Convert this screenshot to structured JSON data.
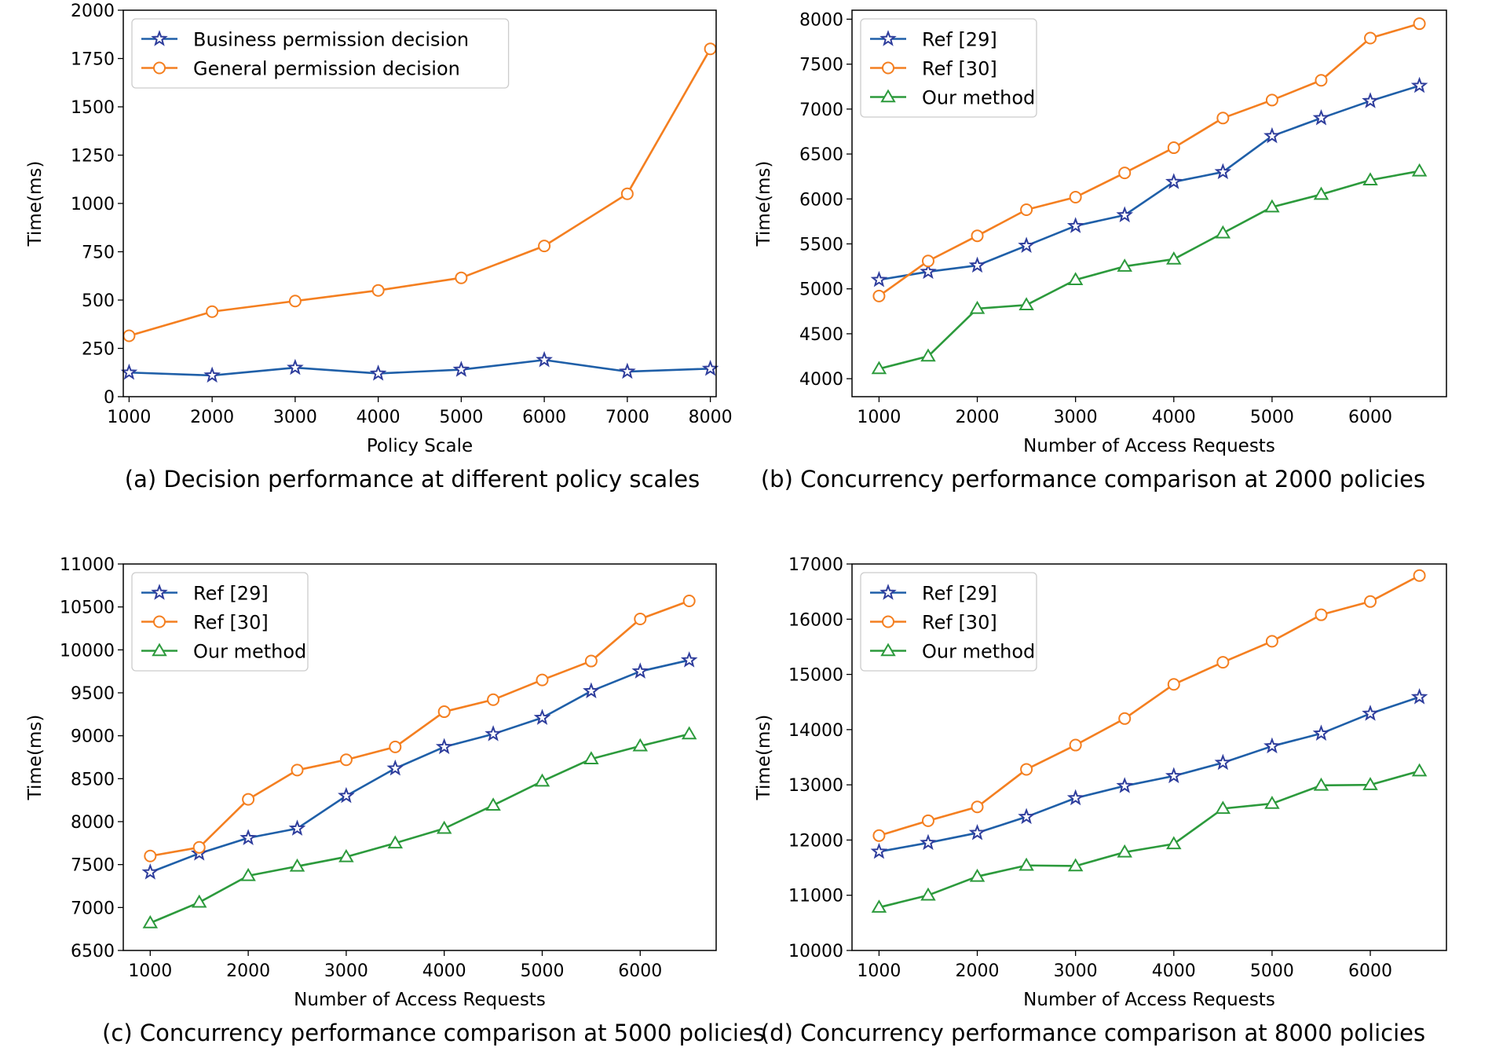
{
  "colors": {
    "blue": "#1f5fa8",
    "orange": "#f47f20",
    "green": "#2c9a3c",
    "star_edge": "#2e3d9c"
  },
  "chart_data": [
    {
      "id": "a",
      "type": "line",
      "caption": "(a) Decision performance at different policy scales",
      "xlabel": "Policy Scale",
      "ylabel": "Time(ms)",
      "xlim": [
        930,
        8070
      ],
      "ylim": [
        0,
        2000
      ],
      "xticks": [
        1000,
        2000,
        3000,
        4000,
        5000,
        6000,
        7000,
        8000
      ],
      "yticks": [
        0,
        250,
        500,
        750,
        1000,
        1250,
        1500,
        1750,
        2000
      ],
      "legend_loc": "top-left",
      "x": [
        1000,
        2000,
        3000,
        4000,
        5000,
        6000,
        7000,
        8000
      ],
      "series": [
        {
          "name": "Business permission decision",
          "color": "blue",
          "marker": "star",
          "values": [
            125,
            110,
            150,
            120,
            140,
            190,
            130,
            145
          ]
        },
        {
          "name": "General permission decision",
          "color": "orange",
          "marker": "circle",
          "values": [
            315,
            440,
            495,
            550,
            615,
            780,
            1050,
            1800
          ]
        }
      ]
    },
    {
      "id": "b",
      "type": "line",
      "caption": "(b) Concurrency performance comparison at 2000 policies",
      "xlabel": "Number of Access Requests",
      "ylabel": "Time(ms)",
      "xlim": [
        725,
        6775
      ],
      "ylim": [
        3800,
        8100
      ],
      "xticks": [
        1000,
        2000,
        3000,
        4000,
        5000,
        6000
      ],
      "yticks": [
        4000,
        4500,
        5000,
        5500,
        6000,
        6500,
        7000,
        7500,
        8000
      ],
      "legend_loc": "top-left",
      "x": [
        1000,
        1500,
        2000,
        2500,
        3000,
        3500,
        4000,
        4500,
        5000,
        5500,
        6000,
        6500
      ],
      "series": [
        {
          "name": "Ref [29]",
          "color": "blue",
          "marker": "star",
          "values": [
            5100,
            5190,
            5260,
            5480,
            5700,
            5820,
            6190,
            6300,
            6700,
            6900,
            7090,
            7260
          ]
        },
        {
          "name": "Ref [30]",
          "color": "orange",
          "marker": "circle",
          "values": [
            4920,
            5310,
            5590,
            5880,
            6020,
            6290,
            6570,
            6900,
            7100,
            7320,
            7790,
            7950
          ]
        },
        {
          "name": "Our method",
          "color": "green",
          "marker": "triangle",
          "values": [
            4110,
            4250,
            4780,
            4820,
            5100,
            5250,
            5330,
            5620,
            5910,
            6050,
            6210,
            6310
          ]
        }
      ]
    },
    {
      "id": "c",
      "type": "line",
      "caption": "(c) Concurrency performance comparison at 5000 policies",
      "xlabel": "Number of Access Requests",
      "ylabel": "Time(ms)",
      "xlim": [
        725,
        6775
      ],
      "ylim": [
        6500,
        11000
      ],
      "xticks": [
        1000,
        2000,
        3000,
        4000,
        5000,
        6000
      ],
      "yticks": [
        6500,
        7000,
        7500,
        8000,
        8500,
        9000,
        9500,
        10000,
        10500,
        11000
      ],
      "legend_loc": "top-left",
      "x": [
        1000,
        1500,
        2000,
        2500,
        3000,
        3500,
        4000,
        4500,
        5000,
        5500,
        6000,
        6500
      ],
      "series": [
        {
          "name": "Ref [29]",
          "color": "blue",
          "marker": "star",
          "values": [
            7410,
            7630,
            7810,
            7920,
            8300,
            8620,
            8870,
            9020,
            9210,
            9520,
            9750,
            9880
          ]
        },
        {
          "name": "Ref [30]",
          "color": "orange",
          "marker": "circle",
          "values": [
            7600,
            7700,
            8260,
            8600,
            8720,
            8870,
            9280,
            9420,
            9650,
            9870,
            10360,
            10570
          ]
        },
        {
          "name": "Our method",
          "color": "green",
          "marker": "triangle",
          "values": [
            6820,
            7060,
            7370,
            7480,
            7590,
            7750,
            7920,
            8190,
            8470,
            8730,
            8880,
            9020
          ]
        }
      ]
    },
    {
      "id": "d",
      "type": "line",
      "caption": "(d) Concurrency performance comparison at 8000 policies",
      "xlabel": "Number of Access Requests",
      "ylabel": "Time(ms)",
      "xlim": [
        725,
        6775
      ],
      "ylim": [
        10000,
        17000
      ],
      "xticks": [
        1000,
        2000,
        3000,
        4000,
        5000,
        6000
      ],
      "yticks": [
        10000,
        11000,
        12000,
        13000,
        14000,
        15000,
        16000,
        17000
      ],
      "legend_loc": "top-left",
      "x": [
        1000,
        1500,
        2000,
        2500,
        3000,
        3500,
        4000,
        4500,
        5000,
        5500,
        6000,
        6500
      ],
      "series": [
        {
          "name": "Ref [29]",
          "color": "blue",
          "marker": "star",
          "values": [
            11790,
            11950,
            12130,
            12420,
            12760,
            12980,
            13160,
            13400,
            13700,
            13930,
            14290,
            14590
          ]
        },
        {
          "name": "Ref [30]",
          "color": "orange",
          "marker": "circle",
          "values": [
            12080,
            12350,
            12600,
            13280,
            13720,
            14200,
            14820,
            15220,
            15600,
            16080,
            16320,
            16790
          ]
        },
        {
          "name": "Our method",
          "color": "green",
          "marker": "triangle",
          "values": [
            10780,
            11000,
            11340,
            11540,
            11530,
            11780,
            11930,
            12570,
            12660,
            12990,
            13000,
            13250
          ]
        }
      ]
    }
  ]
}
